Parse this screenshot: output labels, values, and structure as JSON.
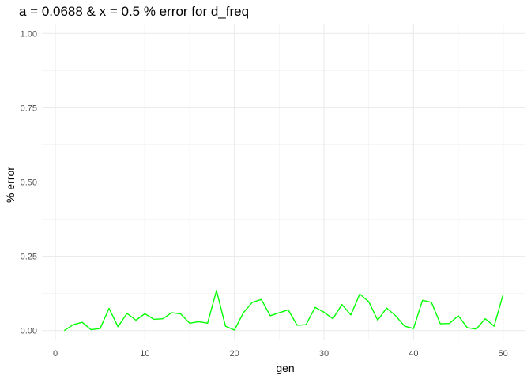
{
  "chart_data": {
    "type": "line",
    "title": "a = 0.0688 & x = 0.5 % error for d_freq",
    "xlabel": "gen",
    "ylabel": "% error",
    "xlim": [
      -1.5,
      52.5
    ],
    "ylim": [
      -0.03,
      1.03
    ],
    "x_ticks": [
      0,
      10,
      20,
      30,
      40,
      50
    ],
    "x_tick_labels": [
      "0",
      "10",
      "20",
      "30",
      "40",
      "50"
    ],
    "y_ticks": [
      0,
      0.25,
      0.5,
      0.75,
      1.0
    ],
    "y_tick_labels": [
      "0.00",
      "0.25",
      "0.50",
      "0.75",
      "1.00"
    ],
    "grid": true,
    "line_color": "#00ff00",
    "series": [
      {
        "x": [
          1,
          2,
          3,
          4,
          5,
          6,
          7,
          8,
          9,
          10,
          11,
          12,
          13,
          14,
          15,
          16,
          17,
          18,
          19,
          20,
          21,
          22,
          23,
          24,
          25,
          26,
          27,
          28,
          29,
          30,
          31,
          32,
          33,
          34,
          35,
          36,
          37,
          38,
          39,
          40,
          41,
          42,
          43,
          44,
          45,
          46,
          47,
          48,
          49,
          50
        ],
        "values": [
          0.0,
          0.02,
          0.028,
          0.003,
          0.007,
          0.075,
          0.013,
          0.058,
          0.035,
          0.057,
          0.038,
          0.04,
          0.06,
          0.056,
          0.025,
          0.03,
          0.025,
          0.135,
          0.015,
          0.002,
          0.06,
          0.095,
          0.105,
          0.05,
          0.06,
          0.07,
          0.018,
          0.02,
          0.078,
          0.062,
          0.04,
          0.088,
          0.053,
          0.123,
          0.097,
          0.035,
          0.076,
          0.05,
          0.015,
          0.007,
          0.102,
          0.095,
          0.023,
          0.024,
          0.05,
          0.01,
          0.005,
          0.04,
          0.015,
          0.122
        ]
      }
    ]
  }
}
